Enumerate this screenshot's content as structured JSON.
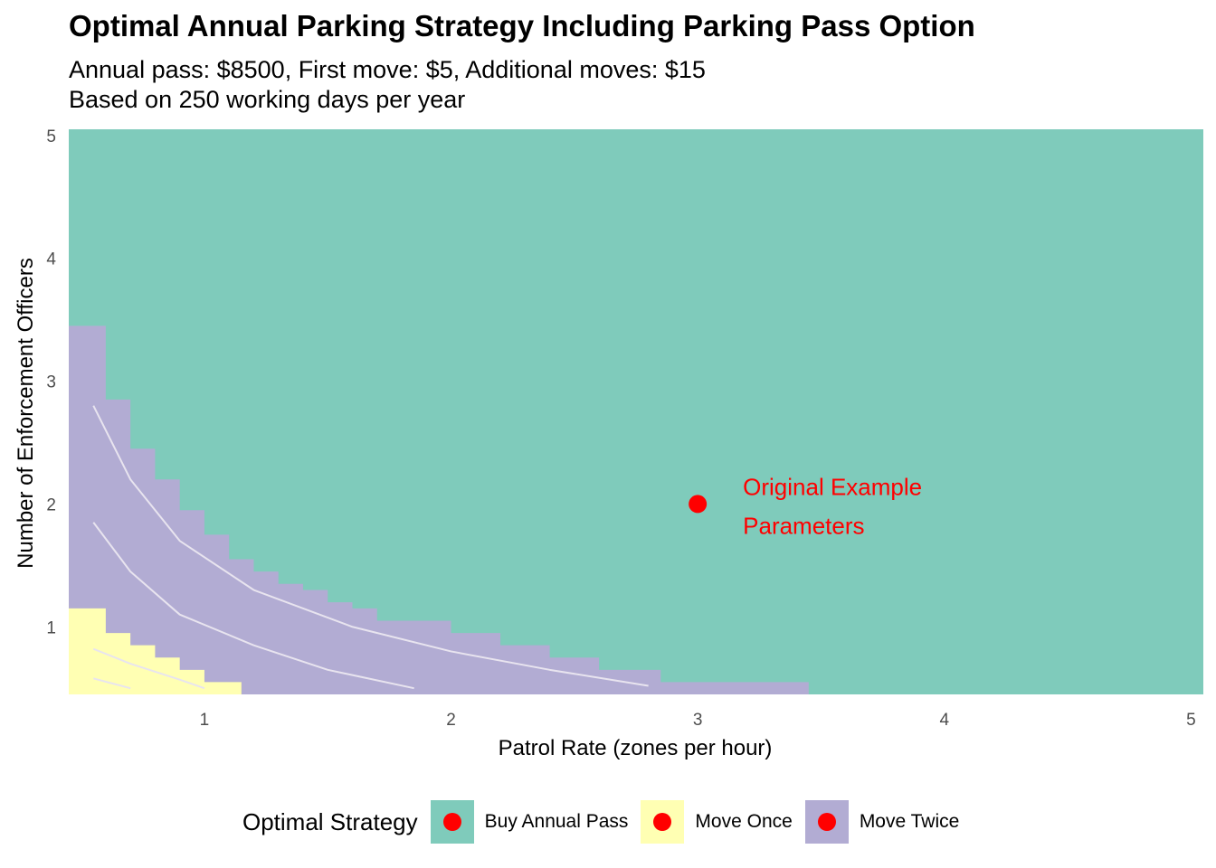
{
  "title": "Optimal Annual Parking Strategy Including Parking Pass Option",
  "subtitle_lines": [
    "Annual pass: $8500, First move: $5, Additional moves: $15",
    "Based on 250 working days per year"
  ],
  "chart_data": {
    "type": "heatmap",
    "title": "Optimal Annual Parking Strategy Including Parking Pass Option",
    "xlabel": "Patrol Rate (zones per hour)",
    "ylabel": "Number of Enforcement Officers",
    "xlim": [
      0.45,
      5.05
    ],
    "ylim": [
      0.45,
      5.05
    ],
    "x_ticks": [
      1,
      2,
      3,
      4,
      5
    ],
    "y_ticks": [
      1,
      2,
      3,
      4,
      5
    ],
    "grid": true,
    "categories": [
      "Buy Annual Pass",
      "Move Once",
      "Move Twice"
    ],
    "colors": {
      "Buy Annual Pass": "#7fcbbb",
      "Move Once": "#ffffb3",
      "Move Twice": "#b2acd3"
    },
    "regions": [
      {
        "strategy": "Buy Annual Pass",
        "description": "fills area above the Move Twice boundary"
      },
      {
        "strategy": "Move Twice",
        "boundary": [
          [
            0.5,
            3.45
          ],
          [
            0.6,
            2.85
          ],
          [
            0.7,
            2.45
          ],
          [
            0.8,
            2.2
          ],
          [
            0.9,
            1.95
          ],
          [
            1.0,
            1.75
          ],
          [
            1.1,
            1.55
          ],
          [
            1.2,
            1.45
          ],
          [
            1.3,
            1.35
          ],
          [
            1.4,
            1.3
          ],
          [
            1.5,
            1.2
          ],
          [
            1.6,
            1.15
          ],
          [
            1.7,
            1.05
          ],
          [
            1.8,
            1.05
          ],
          [
            2.0,
            0.95
          ],
          [
            2.2,
            0.85
          ],
          [
            2.4,
            0.75
          ],
          [
            2.6,
            0.65
          ],
          [
            2.8,
            0.65
          ],
          [
            2.85,
            0.55
          ],
          [
            3.45,
            0.55
          ]
        ]
      },
      {
        "strategy": "Move Once",
        "boundary": [
          [
            0.5,
            1.15
          ],
          [
            0.6,
            0.95
          ],
          [
            0.7,
            0.85
          ],
          [
            0.8,
            0.75
          ],
          [
            0.9,
            0.65
          ],
          [
            1.0,
            0.55
          ],
          [
            1.15,
            0.55
          ]
        ]
      }
    ],
    "contour_lines": [
      [
        [
          0.55,
          2.8
        ],
        [
          0.7,
          2.2
        ],
        [
          0.9,
          1.7
        ],
        [
          1.2,
          1.3
        ],
        [
          1.6,
          1.0
        ],
        [
          2.0,
          0.8
        ],
        [
          2.4,
          0.65
        ],
        [
          2.8,
          0.52
        ]
      ],
      [
        [
          0.55,
          1.85
        ],
        [
          0.7,
          1.45
        ],
        [
          0.9,
          1.1
        ],
        [
          1.2,
          0.85
        ],
        [
          1.5,
          0.65
        ],
        [
          1.85,
          0.5
        ]
      ],
      [
        [
          0.55,
          0.82
        ],
        [
          0.7,
          0.7
        ],
        [
          0.9,
          0.57
        ],
        [
          1.0,
          0.5
        ]
      ],
      [
        [
          0.55,
          0.58
        ],
        [
          0.7,
          0.5
        ]
      ]
    ],
    "point": {
      "x": 3,
      "y": 2,
      "label_lines": [
        "Original Example",
        "Parameters"
      ]
    },
    "legend": {
      "title": "Optimal Strategy",
      "position": "bottom",
      "entries": [
        "Buy Annual Pass",
        "Move Once",
        "Move Twice"
      ]
    }
  }
}
